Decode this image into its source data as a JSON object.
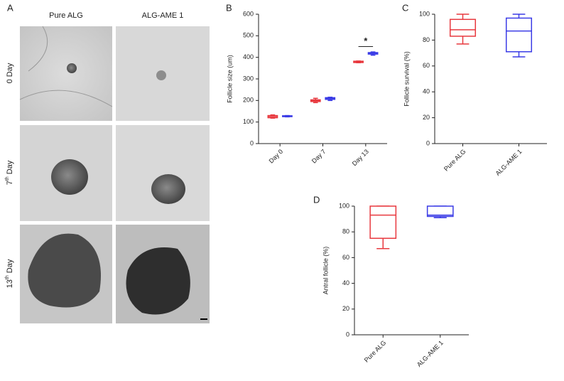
{
  "panel_a": {
    "label": "A",
    "columns": [
      "Pure ALG",
      "ALG-AME 1"
    ],
    "rows": [
      [
        "0 Day"
      ],
      [
        "7",
        "th",
        " Day"
      ],
      [
        "13",
        "th",
        " Day"
      ]
    ]
  },
  "chart_data": [
    {
      "type": "box",
      "label": "B",
      "y_label": "Follicle size (um)",
      "categories": [
        "Day 0",
        "Day 7",
        "Day 13"
      ],
      "series": [
        {
          "color": "#e8393f",
          "boxes": [
            {
              "min": 118,
              "q1": 120,
              "median": 125,
              "q3": 130,
              "max": 133
            },
            {
              "min": 190,
              "q1": 195,
              "median": 199,
              "q3": 203,
              "max": 210
            },
            {
              "min": 375,
              "q1": 376,
              "median": 379,
              "q3": 382,
              "max": 383
            }
          ]
        },
        {
          "color": "#3b3ce6",
          "boxes": [
            {
              "min": 124,
              "q1": 125,
              "median": 127,
              "q3": 129,
              "max": 130
            },
            {
              "min": 200,
              "q1": 205,
              "median": 209,
              "q3": 213,
              "max": 215
            },
            {
              "min": 410,
              "q1": 415,
              "median": 419,
              "q3": 422,
              "max": 425
            }
          ]
        }
      ],
      "ylim": [
        0,
        600
      ],
      "yticks": [
        0,
        100,
        200,
        300,
        400,
        500,
        600
      ],
      "annotations": [
        {
          "text": "*",
          "category": 2,
          "value": 450
        }
      ]
    },
    {
      "type": "box",
      "label": "C",
      "y_label": "Follicle survival (%)",
      "categories": [
        "Pure ALG",
        "ALG-AME 1"
      ],
      "colors": [
        "#e8393f",
        "#3b3ce6"
      ],
      "boxes": [
        {
          "min": 77,
          "q1": 83,
          "median": 88,
          "q3": 96,
          "max": 100
        },
        {
          "min": 67,
          "q1": 71,
          "median": 87,
          "q3": 97,
          "max": 100
        }
      ],
      "ylim": [
        0,
        100
      ],
      "yticks": [
        0,
        20,
        40,
        60,
        80,
        100
      ]
    },
    {
      "type": "box",
      "label": "D",
      "y_label": "Antral follicle (%)",
      "categories": [
        "Pure ALG",
        "ALG-AME 1"
      ],
      "colors": [
        "#e8393f",
        "#3b3ce6"
      ],
      "boxes": [
        {
          "min": 67,
          "q1": 75,
          "median": 93,
          "q3": 100,
          "max": 100
        },
        {
          "min": 91,
          "q1": 92,
          "median": 93,
          "q3": 100,
          "max": 100
        }
      ],
      "ylim": [
        0,
        100
      ],
      "yticks": [
        0,
        20,
        40,
        60,
        80,
        100
      ]
    }
  ]
}
